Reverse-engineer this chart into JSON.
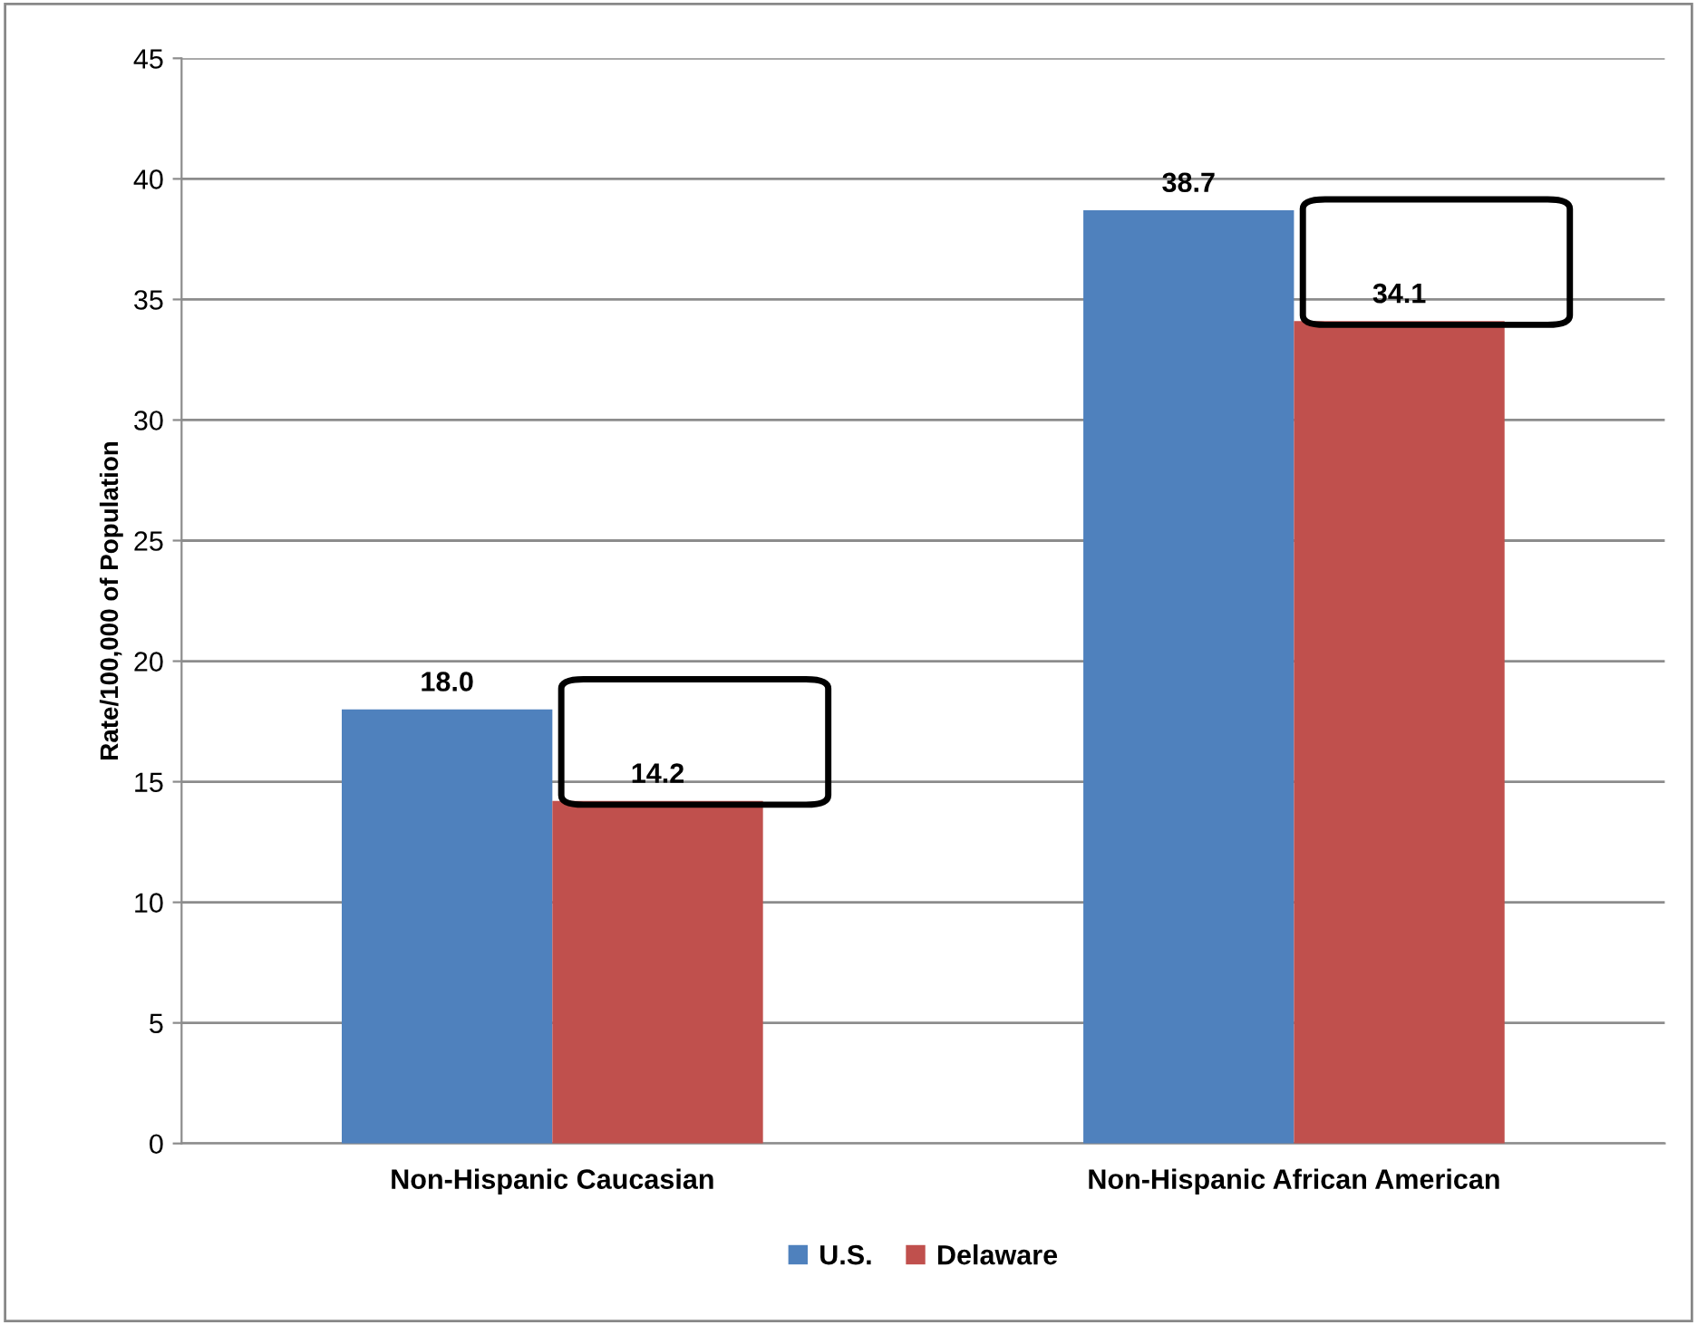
{
  "chart_data": {
    "type": "bar",
    "ylabel": "Rate/100,000 of Population",
    "categories": [
      "Non-Hispanic Caucasian",
      "Non-Hispanic African American"
    ],
    "series": [
      {
        "name": "U.S.",
        "color": "#4f81bd",
        "values": [
          18.0,
          38.7
        ],
        "value_labels": [
          "18.0",
          "38.7"
        ]
      },
      {
        "name": "Delaware",
        "color": "#c0504d",
        "values": [
          14.2,
          34.1
        ],
        "value_labels": [
          "14.2",
          "34.1"
        ]
      }
    ],
    "ylim": [
      0,
      45
    ],
    "yticks": [
      0,
      5,
      10,
      15,
      20,
      25,
      30,
      35,
      40,
      45
    ],
    "grid": "y",
    "legend": "bottom"
  }
}
